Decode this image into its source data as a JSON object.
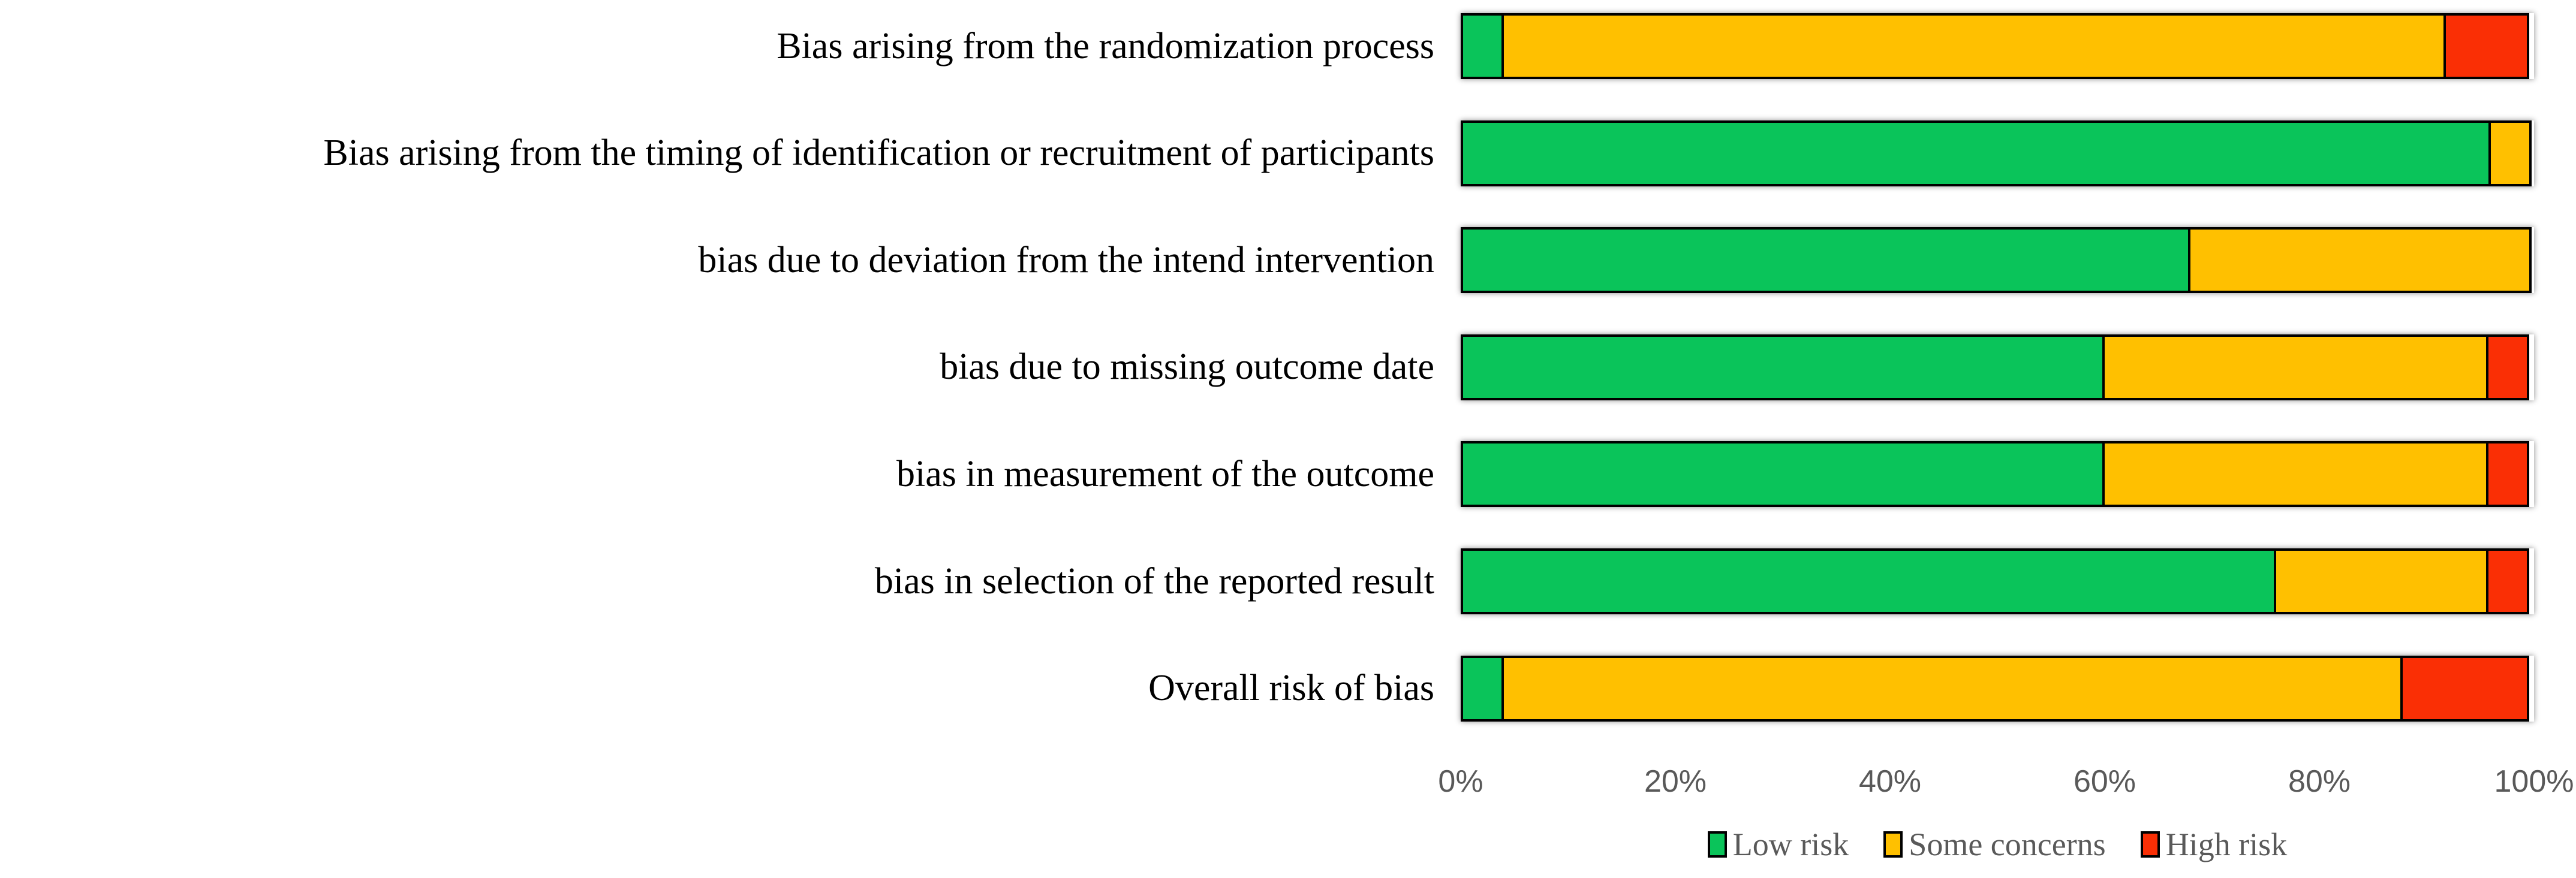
{
  "chart_data": {
    "type": "bar",
    "orientation": "horizontal",
    "stacked": true,
    "title": "",
    "unit": "percent",
    "categories": [
      "Bias arising from the randomization process",
      "Bias arising from the timing of identification or recruitment of participants",
      "bias due to deviation from the intend intervention",
      "bias due to missing outcome date",
      "bias in measurement of the outcome",
      "bias in selection of the reported result",
      "Overall risk of bias"
    ],
    "series": [
      {
        "name": "Low risk",
        "color": "#0AC45A",
        "values": [
          4,
          96,
          68,
          60,
          60,
          76,
          4
        ]
      },
      {
        "name": "Some concerns",
        "color": "#FFC000",
        "values": [
          88,
          4,
          32,
          36,
          36,
          20,
          84
        ]
      },
      {
        "name": "High risk",
        "color": "#FA2F05",
        "values": [
          8,
          0,
          0,
          4,
          4,
          4,
          12
        ]
      }
    ],
    "x_axis": {
      "range": [
        0,
        100
      ],
      "ticks": [
        0,
        20,
        40,
        60,
        80,
        100
      ],
      "tick_labels": [
        "0%",
        "20%",
        "40%",
        "60%",
        "80%",
        "100%"
      ],
      "grid": false
    },
    "legend": {
      "position": "bottom",
      "entries": [
        "Low risk",
        "Some concerns",
        "High risk"
      ]
    }
  },
  "styles": {
    "background": "#FFFFFF",
    "category_label_color": "#000000",
    "axis_text_color": "#595959",
    "legend_text_color": "#595959",
    "segment_border_color": "#000000"
  }
}
